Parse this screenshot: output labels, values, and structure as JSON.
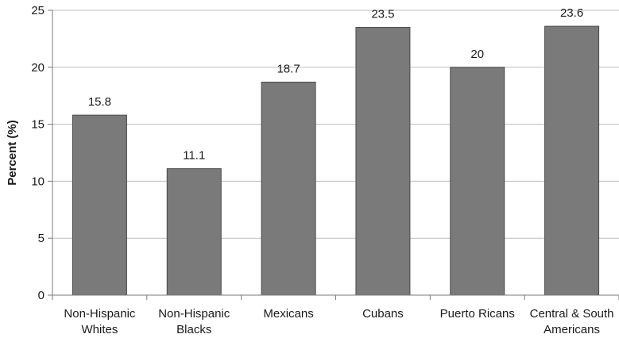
{
  "chart_data": {
    "type": "bar",
    "categories": [
      [
        "Non-Hispanic",
        "Whites"
      ],
      [
        "Non-Hispanic",
        "Blacks"
      ],
      [
        "Mexicans"
      ],
      [
        "Cubans"
      ],
      [
        "Puerto Ricans"
      ],
      [
        "Central & South",
        "Americans"
      ]
    ],
    "values": [
      15.8,
      11.1,
      18.7,
      23.5,
      20,
      23.6
    ],
    "data_labels": [
      "15.8",
      "11.1",
      "18.7",
      "23.5",
      "20",
      "23.6"
    ],
    "title": "",
    "xlabel": "",
    "ylabel": "Percent (%)",
    "ylim": [
      0,
      25
    ],
    "yticks": [
      0,
      5,
      10,
      15,
      20,
      25
    ],
    "grid": "horizontal",
    "legend": "none",
    "colors": {
      "bar_fill": "#7a7a7a",
      "bar_stroke": "#4a4a4a",
      "grid": "#bdbdbd",
      "axis": "#7a7a7a",
      "text": "#1a1a1a"
    }
  }
}
